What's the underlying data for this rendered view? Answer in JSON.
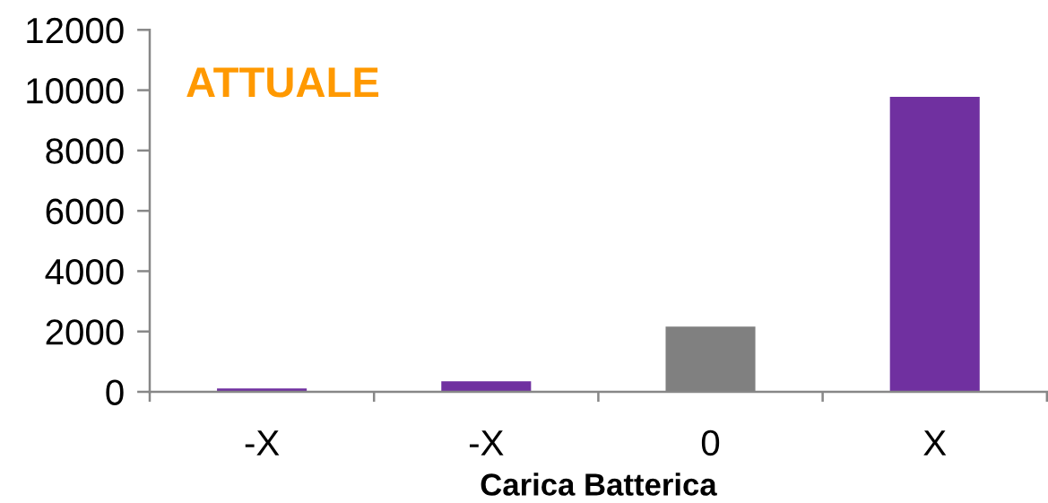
{
  "chart_data": {
    "type": "bar",
    "title": "ATTUALE",
    "xlabel": "Carica Batterica",
    "categories": [
      "-X",
      "-X",
      "0",
      "X"
    ],
    "values": [
      110,
      350,
      2160,
      9780
    ],
    "colors": [
      "#7030a0",
      "#7030a0",
      "#808080",
      "#7030a0"
    ],
    "ylim": [
      0,
      12000
    ],
    "yticks": [
      0,
      2000,
      4000,
      6000,
      8000,
      10000,
      12000
    ],
    "grid": false,
    "legend": false
  }
}
